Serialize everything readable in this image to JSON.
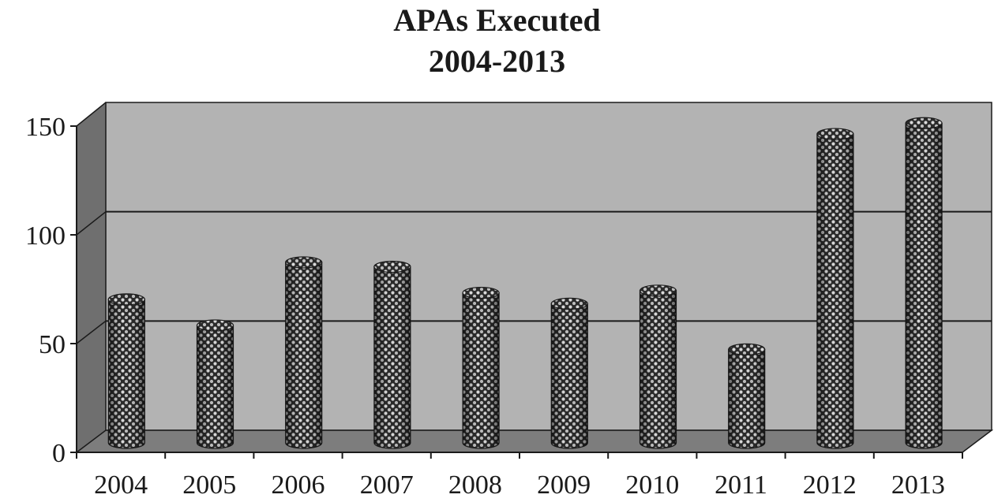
{
  "chart_data": {
    "type": "bar",
    "title": [
      "APAs Executed",
      "2004-2013"
    ],
    "xlabel": "",
    "ylabel": "",
    "categories": [
      "2004",
      "2005",
      "2006",
      "2007",
      "2008",
      "2009",
      "2010",
      "2011",
      "2012",
      "2013"
    ],
    "values": [
      66,
      54,
      83,
      81,
      69,
      64,
      70,
      43,
      142,
      147
    ],
    "ylim": [
      0,
      150
    ],
    "yticks": [
      "0",
      "50",
      "100",
      "150"
    ],
    "grid": true,
    "style": "3d-cylinder",
    "colors": {
      "back_wall": "#b3b3b3",
      "side_wall": "#6f6f6f",
      "floor": "#7d7d7d",
      "bar_dark": "#2b2b2b",
      "bar_light": "#d9d9d9",
      "gridline": "#1a1a1a"
    }
  }
}
